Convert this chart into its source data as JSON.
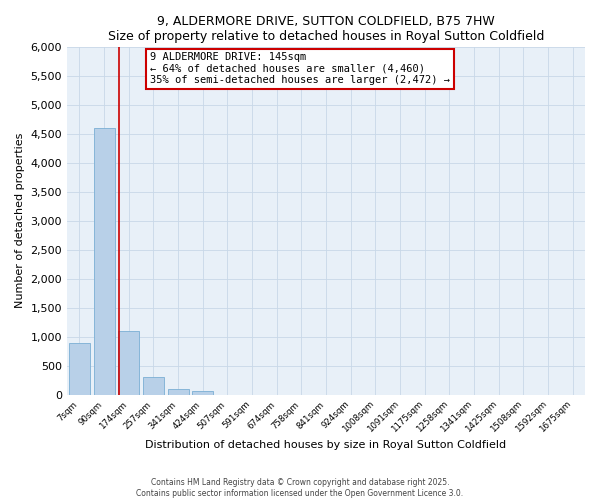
{
  "title": "9, ALDERMORE DRIVE, SUTTON COLDFIELD, B75 7HW",
  "subtitle": "Size of property relative to detached houses in Royal Sutton Coldfield",
  "xlabel": "Distribution of detached houses by size in Royal Sutton Coldfield",
  "ylabel": "Number of detached properties",
  "bar_color": "#b8d0e8",
  "bar_edge_color": "#7bafd4",
  "grid_color": "#c8d8e8",
  "background_color": "#e8f0f8",
  "vline_color": "#cc0000",
  "annotation_text": "9 ALDERMORE DRIVE: 145sqm\n← 64% of detached houses are smaller (4,460)\n35% of semi-detached houses are larger (2,472) →",
  "annotation_box_color": "white",
  "annotation_box_edge_color": "#cc0000",
  "footer_text": "Contains HM Land Registry data © Crown copyright and database right 2025.\nContains public sector information licensed under the Open Government Licence 3.0.",
  "categories": [
    "7sqm",
    "90sqm",
    "174sqm",
    "257sqm",
    "341sqm",
    "424sqm",
    "507sqm",
    "591sqm",
    "674sqm",
    "758sqm",
    "841sqm",
    "924sqm",
    "1008sqm",
    "1091sqm",
    "1175sqm",
    "1258sqm",
    "1341sqm",
    "1425sqm",
    "1508sqm",
    "1592sqm",
    "1675sqm"
  ],
  "values": [
    900,
    4600,
    1100,
    305,
    90,
    60,
    0,
    0,
    0,
    0,
    0,
    0,
    0,
    0,
    0,
    0,
    0,
    0,
    0,
    0,
    0
  ],
  "ylim": [
    0,
    6000
  ],
  "yticks": [
    0,
    500,
    1000,
    1500,
    2000,
    2500,
    3000,
    3500,
    4000,
    4500,
    5000,
    5500,
    6000
  ],
  "vline_x": 1.6
}
